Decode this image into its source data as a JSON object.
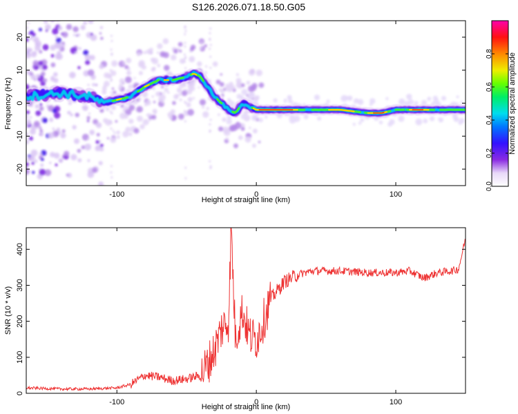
{
  "title": "S126.2026.071.18.50.G05",
  "chart_data": [
    {
      "type": "heatmap",
      "xlabel": "Height of straight line (km)",
      "ylabel": "Frequency (Hz)",
      "xlim": [
        -165,
        150
      ],
      "ylim": [
        -25,
        25
      ],
      "xticks": [
        -100,
        0,
        100
      ],
      "yticks": [
        -20,
        -10,
        0,
        10,
        20
      ],
      "colorbar": {
        "label": "Normalized spectral amplitude",
        "range": [
          0,
          1
        ],
        "ticks": [
          "0.0",
          "0.2",
          "0.4",
          "0.6",
          "0.8"
        ]
      },
      "ridge": {
        "x": [
          -165,
          -140,
          -120,
          -110,
          -100,
          -90,
          -80,
          -70,
          -60,
          -50,
          -45,
          -40,
          -35,
          -30,
          -25,
          -20,
          -15,
          -10,
          -5,
          0,
          20,
          40,
          60,
          80,
          90,
          100,
          110,
          120,
          130,
          150
        ],
        "freq": [
          2,
          3,
          2,
          0,
          1,
          2,
          5,
          7,
          7,
          8,
          9,
          8,
          5,
          2,
          0,
          -2,
          -3,
          0,
          -1,
          -2,
          -2,
          -2,
          -2,
          -3,
          -3,
          -2,
          -2,
          -2,
          -2,
          -2
        ]
      }
    },
    {
      "type": "line",
      "xlabel": "Height of straight line (km)",
      "ylabel": "SNR (10 * v/v)",
      "xlim": [
        -165,
        150
      ],
      "ylim": [
        0,
        460
      ],
      "xticks": [
        -100,
        0,
        100
      ],
      "yticks": [
        0,
        100,
        200,
        300,
        400
      ],
      "series": [
        {
          "name": "SNR",
          "color": "#ee3333",
          "x": [
            -165,
            -140,
            -120,
            -100,
            -90,
            -80,
            -70,
            -60,
            -50,
            -40,
            -35,
            -30,
            -25,
            -20,
            -18,
            -15,
            -10,
            -5,
            0,
            5,
            10,
            20,
            30,
            40,
            60,
            80,
            100,
            110,
            120,
            130,
            140,
            145,
            150
          ],
          "y": [
            15,
            12,
            12,
            15,
            25,
            50,
            45,
            35,
            40,
            50,
            80,
            120,
            180,
            200,
            460,
            150,
            230,
            160,
            150,
            200,
            260,
            310,
            330,
            340,
            340,
            335,
            335,
            340,
            320,
            335,
            340,
            345,
            430
          ]
        }
      ]
    }
  ]
}
